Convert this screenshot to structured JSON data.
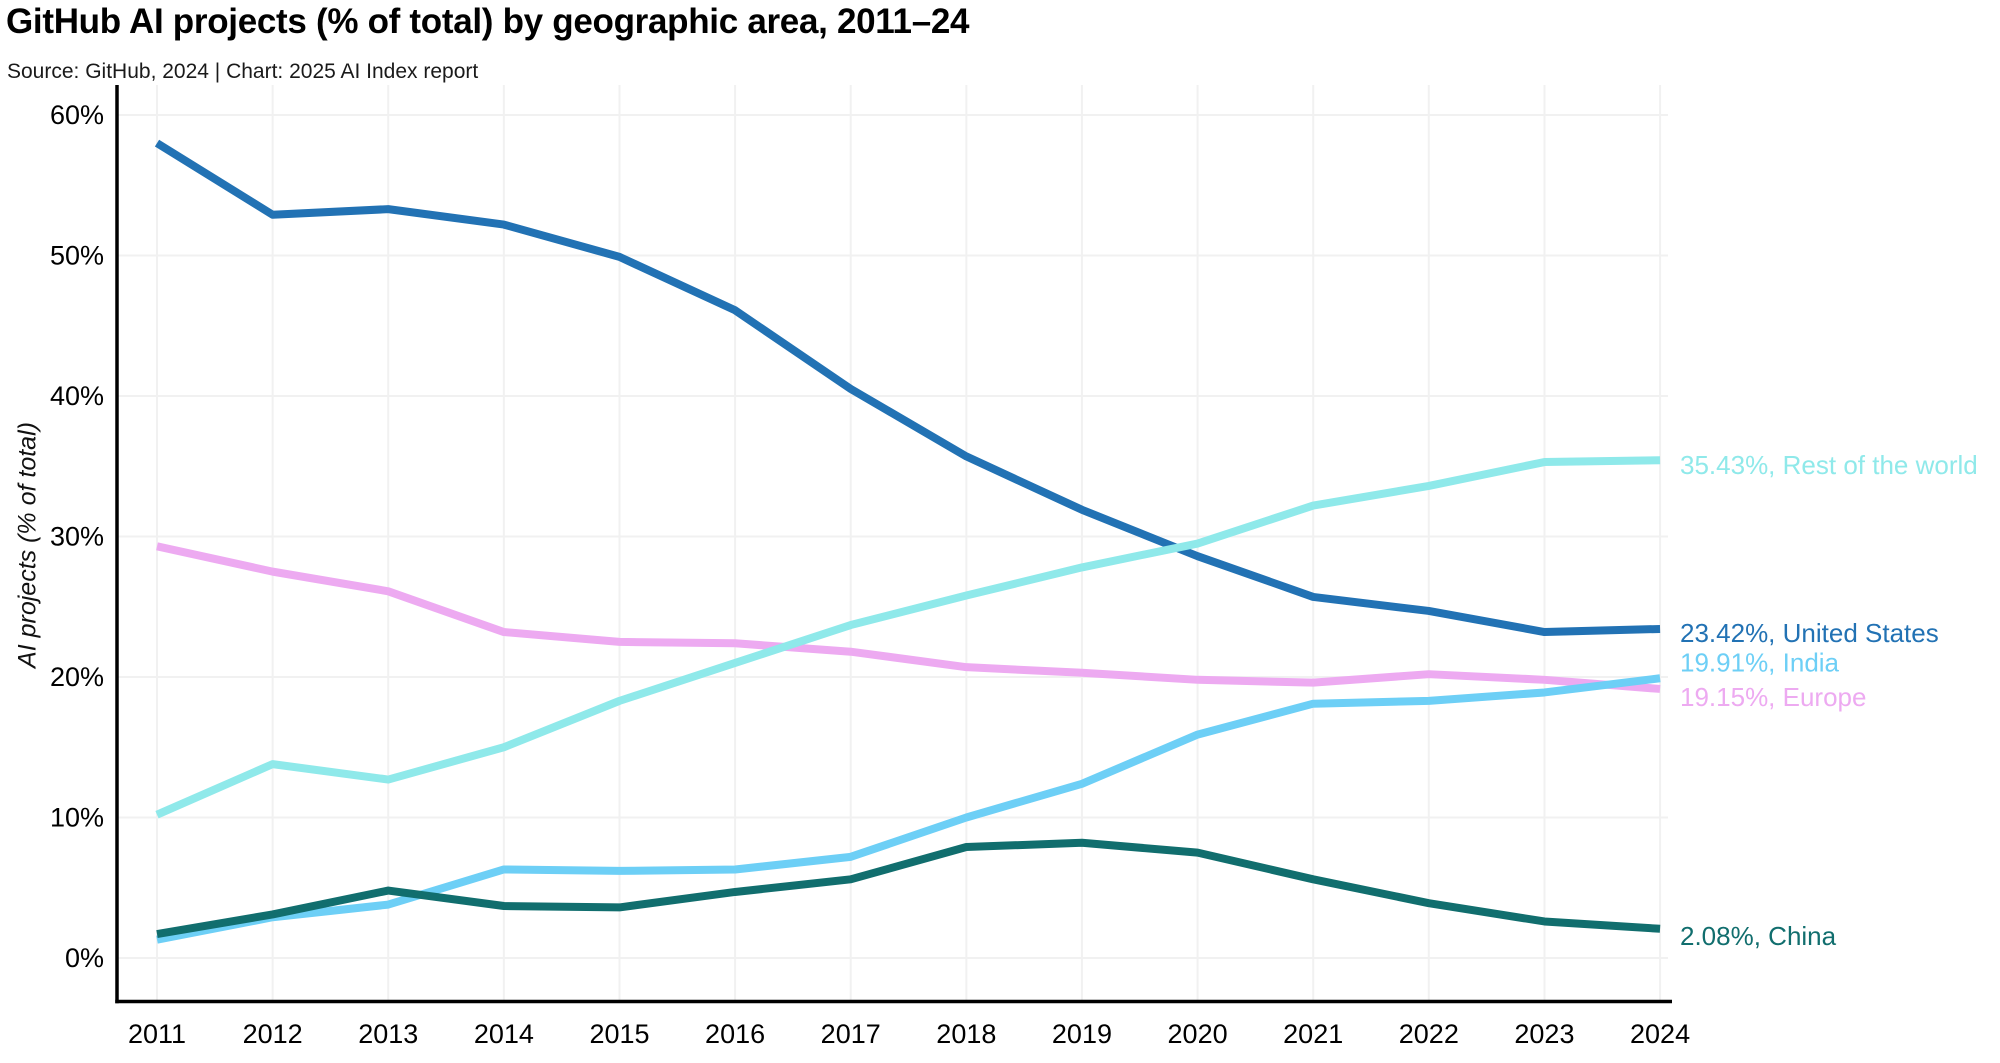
{
  "chart_data": {
    "type": "line",
    "title": "GitHub AI projects (% of total) by geographic area, 2011–24",
    "subtitle": "Source: GitHub, 2024 | Chart: 2025 AI Index report",
    "ylabel": "AI projects (% of total)",
    "x": [
      2011,
      2012,
      2013,
      2014,
      2015,
      2016,
      2017,
      2018,
      2019,
      2020,
      2021,
      2022,
      2023,
      2024
    ],
    "ylim": [
      0,
      60
    ],
    "ytick_step": 10,
    "ytick_suffix": "%",
    "grid": true,
    "legend_position": "right-end-labels",
    "series": [
      {
        "name": "United States",
        "color": "#2272b4",
        "end_label": "23.42%, United States",
        "end_value": 23.42,
        "label_dy": 4,
        "values": [
          58.0,
          52.9,
          53.3,
          52.2,
          49.9,
          46.1,
          40.5,
          35.7,
          31.9,
          28.6,
          25.7,
          24.7,
          23.2,
          23.42
        ]
      },
      {
        "name": "Europe",
        "color": "#edaaf1",
        "end_label": "19.15%, Europe",
        "end_value": 19.15,
        "label_dy": 8,
        "values": [
          29.3,
          27.5,
          26.1,
          23.2,
          22.5,
          22.4,
          21.8,
          20.7,
          20.3,
          19.8,
          19.6,
          20.2,
          19.8,
          19.15
        ]
      },
      {
        "name": "India",
        "color": "#6dcff6",
        "end_label": "19.91%, India",
        "end_value": 19.91,
        "label_dy": -16,
        "values": [
          1.3,
          2.9,
          3.8,
          6.3,
          6.2,
          6.3,
          7.2,
          10.0,
          12.4,
          15.9,
          18.1,
          18.3,
          18.9,
          19.91
        ]
      },
      {
        "name": "China",
        "color": "#116e6e",
        "end_label": "2.08%, China",
        "end_value": 2.08,
        "label_dy": 7,
        "values": [
          1.7,
          3.1,
          4.8,
          3.7,
          3.6,
          4.7,
          5.6,
          7.9,
          8.2,
          7.5,
          5.6,
          3.9,
          2.6,
          2.08
        ]
      },
      {
        "name": "Rest of the world",
        "color": "#8fe9ea",
        "end_label": "35.43%, Rest of the world",
        "end_value": 35.43,
        "label_dy": 5,
        "values": [
          10.2,
          13.8,
          12.7,
          15.0,
          18.3,
          21.0,
          23.7,
          25.8,
          27.8,
          29.5,
          32.2,
          33.6,
          35.3,
          35.43
        ]
      }
    ]
  }
}
